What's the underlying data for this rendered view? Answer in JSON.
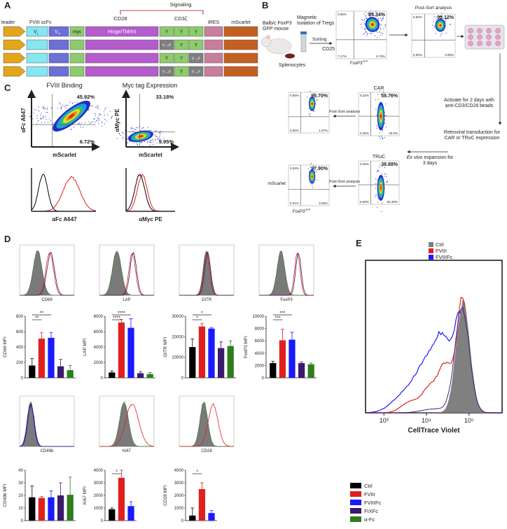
{
  "labels": [
    "A",
    "B",
    "C",
    "D",
    "E"
  ],
  "A": {
    "leader": "leader",
    "scfv": "FVIII scFv",
    "vl": {
      "text": "V",
      "sub": "L"
    },
    "vh": {
      "text": "V",
      "sub": "H"
    },
    "myc": "myc",
    "signaling": "Signaling",
    "cd28": "CD28",
    "cd3z": "CD3ζ",
    "hinge": "Hinge/TM/Int",
    "ires": "IRES",
    "mscarlet": "mScarlet",
    "rows": [
      [
        "Y",
        "Y",
        "Y"
      ],
      [
        "Y→F",
        "Y",
        "Y"
      ],
      [
        "Y",
        "Y",
        "Y→F"
      ],
      [
        "Y→F",
        "Y",
        "Y→F"
      ]
    ]
  },
  "B": {
    "mouse": "Balb/c FoxP3 GFP mouse",
    "magnetic": "Magnetic Isolation of Tregs",
    "sorting": "Sorting",
    "postsort": "Post-Sort analysis",
    "splenocytes": "Splenocytes",
    "cd25": "CD25",
    "foxp3": {
      "text": "FoxP3",
      "sup": "GFP"
    },
    "activate": "Activate for 2 days with anti-CD3/CD28 beads",
    "retroviral": "Retroviral transduction for CAR or TRuC expression",
    "exvivo": {
      "italic": "Ex vivo",
      "rest": "expansion for 3 days"
    },
    "car": "CAR",
    "truc": "TRuC",
    "mscarlet": "mScarlet",
    "postsort_car": "Post-Sort analysis",
    "postsort_truc": "Post-Sort analysis",
    "plots": [
      {
        "tl": "0.65%",
        "tr": "85.34%",
        "bl": "7.17%",
        "br": "6.70%"
      },
      {
        "tl": "0.60%",
        "tr": "99.12%",
        "bl": "0.00%",
        "br": "0.59%"
      },
      {
        "tl": "0.32%",
        "tr": "58.76%",
        "bl": "0.39%",
        "br": "40.5%"
      },
      {
        "tl": "0.29%",
        "tr": "38.88%",
        "bl": "0.50%",
        "br": "60.30%"
      },
      {
        "tl": "0.08%",
        "tr": "98.70%",
        "bl": "0.00%",
        "br": "1.27%"
      },
      {
        "tl": "0.04%",
        "tr": "97.90%",
        "bl": "0.01%",
        "br": "2.05%"
      }
    ]
  },
  "C": {
    "titles": [
      "FVIII Binding",
      "Myc tag Expression"
    ],
    "ylabels": [
      "αFc A647",
      "αMyc PE"
    ],
    "xlabel": "mScarlet",
    "plots": [
      {
        "tr": "45.92%",
        "br": "6.72%"
      },
      {
        "tr": "33.18%",
        "br": "9.95%"
      }
    ],
    "hist_xlabels": [
      "αFc A647",
      "αMyc PE"
    ]
  },
  "D": {
    "histograms": [
      "CD69",
      "LAP",
      "GITR",
      "FoxP3",
      "CD49b",
      "Ki67",
      "CD28"
    ],
    "legend": [
      {
        "name": "Ctrl",
        "color": "#000000"
      },
      {
        "name": "FVIII",
        "color": "#e02020"
      },
      {
        "name": "FVIIIFc",
        "color": "#1a1aff"
      },
      {
        "name": "FIXFc",
        "color": "#3b1a6e"
      },
      {
        "name": "α-Fc",
        "color": "#2f7d1c"
      }
    ],
    "charts": [
      {
        "type": "bar",
        "ylabel": "CD69 MFI",
        "ylim": [
          0,
          800
        ],
        "yticks": [
          0,
          200,
          400,
          600,
          800
        ],
        "values": [
          160,
          510,
          520,
          150,
          100
        ],
        "errors": [
          90,
          80,
          70,
          90,
          60
        ],
        "significance": [
          "**",
          "**"
        ]
      },
      {
        "type": "bar",
        "ylabel": "LAP MFI",
        "ylim": [
          0,
          8000
        ],
        "yticks": [
          0,
          2000,
          4000,
          6000,
          8000
        ],
        "values": [
          700,
          7200,
          6500,
          600,
          500
        ],
        "errors": [
          200,
          400,
          1200,
          200,
          200
        ],
        "significance": [
          "****",
          "****"
        ]
      },
      {
        "type": "bar",
        "ylabel": "GITR MFI",
        "ylim": [
          0,
          30000
        ],
        "yticks": [
          0,
          10000,
          20000,
          30000
        ],
        "values": [
          15000,
          25000,
          24000,
          14500,
          15500
        ],
        "errors": [
          4000,
          1500,
          500,
          3000,
          2500
        ],
        "significance": [
          "*",
          "*"
        ]
      },
      {
        "type": "bar",
        "ylabel": "FoxP3 MFI",
        "ylim": [
          0,
          10000
        ],
        "yticks": [
          0,
          2000,
          4000,
          6000,
          8000,
          10000
        ],
        "values": [
          2400,
          6100,
          6200,
          2400,
          2200
        ],
        "errors": [
          300,
          1800,
          1200,
          200,
          200
        ],
        "significance": [
          "***",
          "***"
        ]
      },
      {
        "type": "bar",
        "ylabel": "CD49b MFI",
        "ylim": [
          0,
          40
        ],
        "yticks": [
          0,
          10,
          20,
          30,
          40
        ],
        "values": [
          18.5,
          18,
          18.5,
          20,
          20.5
        ],
        "errors": [
          9,
          1,
          5,
          10,
          14
        ],
        "significance": []
      },
      {
        "type": "bar",
        "ylabel": "Ki67 MFI",
        "ylim": [
          0,
          4000
        ],
        "yticks": [
          0,
          1000,
          2000,
          3000,
          4000
        ],
        "values": [
          900,
          3400,
          1150
        ],
        "errors": [
          100,
          600,
          350
        ],
        "significance": [
          "*"
        ]
      },
      {
        "type": "bar",
        "ylabel": "CD28 MFI",
        "ylim": [
          0,
          4000
        ],
        "yticks": [
          0,
          1000,
          2000,
          3000,
          4000
        ],
        "values": [
          400,
          2500,
          600
        ],
        "errors": [
          600,
          500,
          200
        ],
        "significance": [
          "*"
        ]
      }
    ]
  },
  "E": {
    "legend": [
      {
        "name": "Ctrl",
        "color": "#808080"
      },
      {
        "name": "FVIII",
        "color": "#e02020"
      },
      {
        "name": "FVIIIFc",
        "color": "#1a1aff"
      },
      {
        "name": "FIXFc",
        "color": "#4b1a7e"
      }
    ],
    "xlabel": "CellTrace Violet",
    "log": true,
    "xlim": [
      370,
      600000
    ],
    "xticks": [
      {
        "value": 1000,
        "label": "10³"
      },
      {
        "value": 10000,
        "label": "10⁴"
      },
      {
        "value": 100000,
        "label": "10⁵"
      }
    ]
  }
}
